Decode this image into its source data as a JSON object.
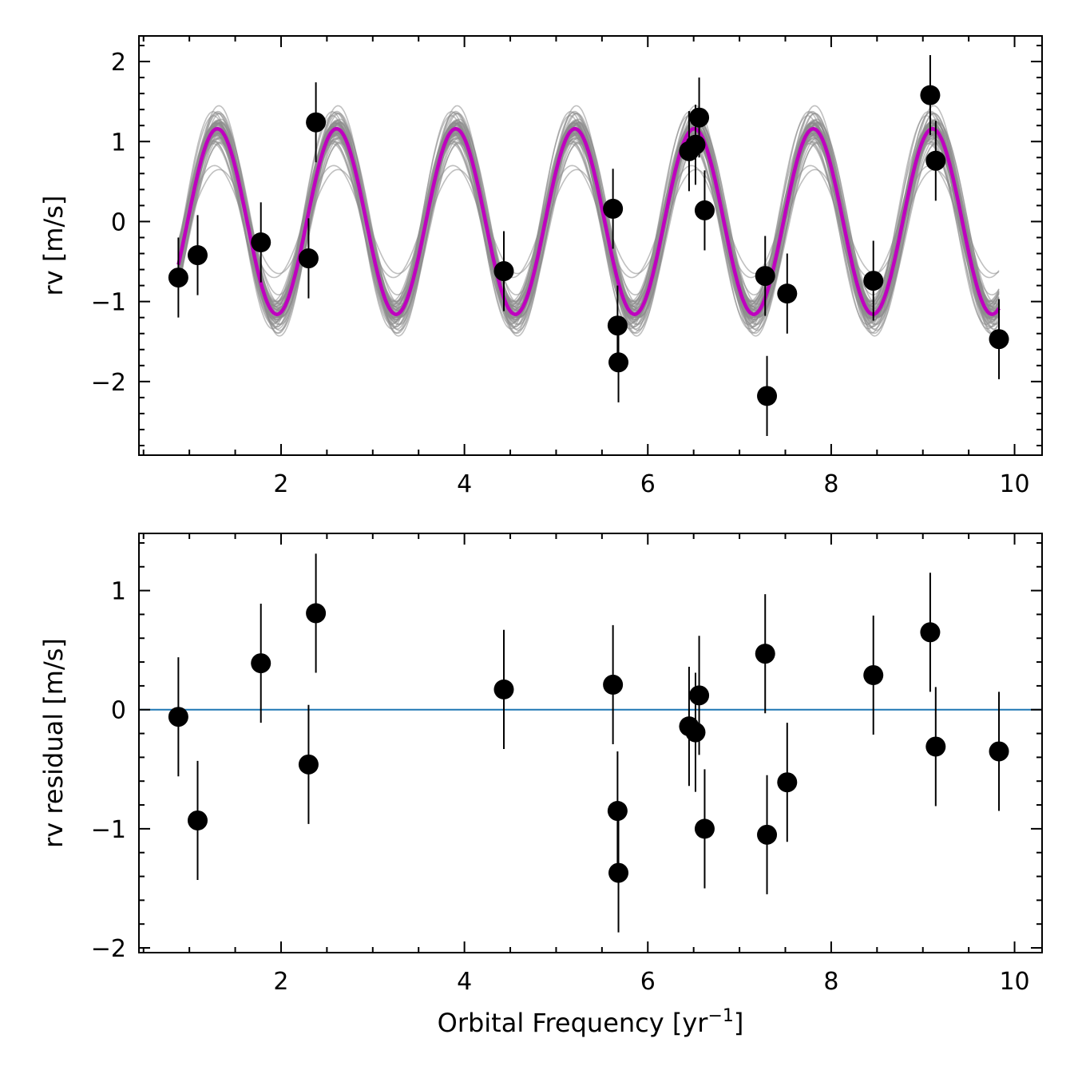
{
  "chart_data": [
    {
      "type": "scatter",
      "ylabel": "rv [m/s]",
      "xlabel": "",
      "xlim": [
        0.45,
        10.3
      ],
      "ylim": [
        -2.92,
        2.32
      ],
      "x_ticks": [
        2,
        4,
        6,
        8,
        10
      ],
      "y_ticks": [
        -2,
        -1,
        0,
        1,
        2
      ],
      "grid": false,
      "legend": "none",
      "model": {
        "amplitude": 1.16,
        "period": 1.3,
        "phase_x": 0.98,
        "x_range": [
          0.88,
          9.83
        ],
        "color": "#bf00bf",
        "draws_color": "#8c8c8c",
        "n_draws": 60
      },
      "series": [
        {
          "x": [
            0.88,
            1.09,
            1.78,
            2.3,
            2.38,
            4.43,
            5.62,
            5.67,
            5.68,
            6.45,
            6.52,
            6.56,
            6.62,
            7.28,
            7.3,
            7.52,
            8.46,
            9.08,
            9.14,
            9.83
          ],
          "y": [
            -0.7,
            -0.42,
            -0.26,
            -0.46,
            1.24,
            -0.62,
            0.16,
            -1.3,
            -1.76,
            0.88,
            0.96,
            1.3,
            0.14,
            -0.68,
            -2.18,
            -0.9,
            -0.74,
            1.58,
            0.76,
            -1.47
          ],
          "yerr": [
            0.5,
            0.5,
            0.5,
            0.5,
            0.5,
            0.5,
            0.5,
            0.5,
            0.5,
            0.5,
            0.5,
            0.5,
            0.5,
            0.5,
            0.5,
            0.5,
            0.5,
            0.5,
            0.5,
            0.5
          ]
        }
      ]
    },
    {
      "type": "scatter",
      "ylabel": "rv residual [m/s]",
      "xlabel": "Orbital Frequency [yr",
      "xlabel_sup": "−1",
      "xlabel_end": "]",
      "xlim": [
        0.45,
        10.3
      ],
      "ylim": [
        -2.04,
        1.48
      ],
      "x_ticks": [
        2,
        4,
        6,
        8,
        10
      ],
      "y_ticks": [
        -2,
        -1,
        0,
        1
      ],
      "grid": false,
      "legend": "none",
      "reference_line": {
        "y": 0,
        "color": "#1f77b4"
      },
      "series": [
        {
          "x": [
            0.88,
            1.09,
            1.78,
            2.3,
            2.38,
            4.43,
            5.62,
            5.67,
            5.68,
            6.45,
            6.52,
            6.56,
            6.62,
            7.28,
            7.3,
            7.52,
            8.46,
            9.08,
            9.14,
            9.83
          ],
          "y": [
            -0.06,
            -0.93,
            0.39,
            -0.46,
            0.81,
            0.17,
            0.21,
            -0.85,
            -1.37,
            -0.14,
            -0.19,
            0.12,
            -1.0,
            0.47,
            -1.05,
            -0.61,
            0.29,
            0.65,
            -0.31,
            -0.35
          ],
          "yerr": [
            0.5,
            0.5,
            0.5,
            0.5,
            0.5,
            0.5,
            0.5,
            0.5,
            0.5,
            0.5,
            0.5,
            0.5,
            0.5,
            0.5,
            0.5,
            0.5,
            0.5,
            0.5,
            0.5,
            0.5
          ]
        }
      ]
    }
  ]
}
